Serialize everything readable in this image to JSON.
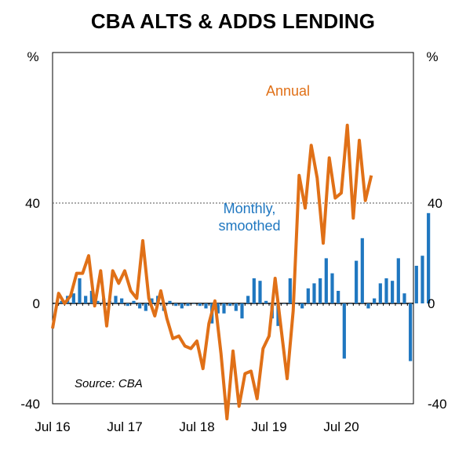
{
  "chart_data": {
    "type": "bar+line",
    "title": "CBA ALTS & ADDS LENDING",
    "left_unit": "%",
    "right_unit": "%",
    "ylim": [
      -40,
      100
    ],
    "y_ticks": [
      40,
      0,
      -40
    ],
    "y_tick_labels": [
      "40",
      "0",
      "-40"
    ],
    "x_range": [
      2016.5,
      2021.5
    ],
    "x_tick_positions": [
      2016.5,
      2017.5,
      2018.5,
      2019.5,
      2020.5
    ],
    "x_tick_labels": [
      "Jul 16",
      "Jul 17",
      "Jul 18",
      "Jul 19",
      "Jul 20"
    ],
    "gridline": {
      "value": 40,
      "style": "dotted"
    },
    "colors": {
      "monthly": "#1f77c0",
      "annual": "#e07017"
    },
    "source": "Source: CBA",
    "series": [
      {
        "name": "Monthly, smoothed",
        "type": "bar",
        "label_text": [
          "Monthly,",
          "smoothed"
        ],
        "x_start": 2016.5,
        "x_step": 0.08333,
        "values": [
          0,
          1,
          3,
          4,
          10,
          3,
          5,
          1,
          2,
          1,
          3,
          2,
          -1,
          1,
          -2,
          -3,
          2,
          3,
          -3,
          1,
          -1,
          -2,
          -1,
          0,
          -1,
          -2,
          -8,
          -4,
          -4,
          -1,
          -3,
          -6,
          3,
          10,
          9,
          1,
          -6,
          -9,
          0,
          10,
          0,
          -2,
          6,
          8,
          10,
          18,
          12,
          5,
          -22,
          0,
          17,
          26,
          -2,
          2,
          8,
          10,
          9,
          18,
          4,
          -23,
          15,
          19,
          36
        ]
      },
      {
        "name": "Annual",
        "type": "line",
        "x_start": 2016.5,
        "x_step": 0.08333,
        "values": [
          -10,
          4,
          0,
          3,
          12,
          12,
          19,
          -1,
          13,
          -9,
          13,
          8,
          13,
          5,
          2,
          25,
          2,
          -5,
          5,
          -6,
          -14,
          -13,
          -17,
          -18,
          -15,
          -26,
          -8,
          1,
          -20,
          -46,
          -19,
          -41,
          -28,
          -27,
          -38,
          -18,
          -13,
          10,
          -10,
          -30,
          -3,
          51,
          38,
          63,
          50,
          24,
          58,
          42,
          44,
          71,
          34,
          65,
          41,
          51
        ]
      }
    ]
  }
}
